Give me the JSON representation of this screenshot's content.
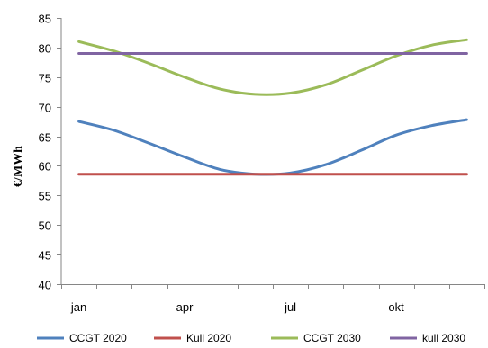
{
  "chart_data": {
    "type": "line",
    "title": "",
    "ylabel": "€/MWh",
    "xlabel": "",
    "ylim": [
      40,
      85
    ],
    "yticks": [
      40,
      45,
      50,
      55,
      60,
      65,
      70,
      75,
      80,
      85
    ],
    "x_tick_labels": [
      "jan",
      "apr",
      "jul",
      "okt"
    ],
    "x_tick_label_months": [
      1,
      4,
      7,
      10
    ],
    "months": [
      1,
      2,
      3,
      4,
      5,
      6,
      7,
      8,
      9,
      10,
      11,
      12
    ],
    "gridlines": false,
    "legend_position": "bottom",
    "series": [
      {
        "name": "CCGT 2020",
        "color": "#4f81bd",
        "values": [
          67.5,
          66.0,
          63.8,
          61.5,
          59.4,
          58.6,
          58.8,
          60.2,
          62.6,
          65.2,
          66.8,
          67.8
        ]
      },
      {
        "name": "Kull 2020",
        "color": "#c0504d",
        "values": [
          58.6,
          58.6,
          58.6,
          58.6,
          58.6,
          58.6,
          58.6,
          58.6,
          58.6,
          58.6,
          58.6,
          58.6
        ]
      },
      {
        "name": "CCGT 2030",
        "color": "#9bbb59",
        "values": [
          81.0,
          79.4,
          77.3,
          75.0,
          73.0,
          72.1,
          72.3,
          73.7,
          76.1,
          78.6,
          80.4,
          81.3
        ]
      },
      {
        "name": "kull 2030",
        "color": "#8064a2",
        "values": [
          79.0,
          79.0,
          79.0,
          79.0,
          79.0,
          79.0,
          79.0,
          79.0,
          79.0,
          79.0,
          79.0,
          79.0
        ]
      }
    ]
  }
}
